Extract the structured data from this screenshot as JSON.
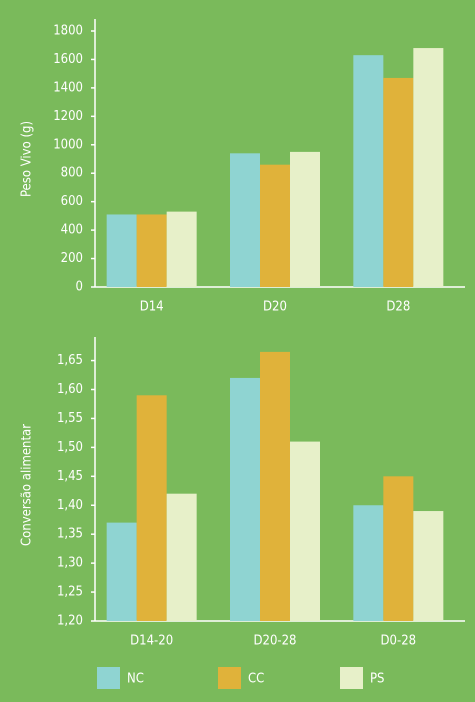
{
  "chart_data": [
    {
      "type": "bar",
      "ylabel": "Peso Vivo (g)",
      "categories": [
        "D14",
        "D20",
        "D28"
      ],
      "series": [
        {
          "name": "NC",
          "color": "#8fd4d2",
          "values": [
            510,
            940,
            1630
          ]
        },
        {
          "name": "CC",
          "color": "#e0b23a",
          "values": [
            510,
            860,
            1470
          ]
        },
        {
          "name": "PS",
          "color": "#e7f0c9",
          "values": [
            530,
            950,
            1680
          ]
        }
      ],
      "ylim": [
        0,
        1800
      ],
      "yticks": [
        0,
        200,
        400,
        600,
        800,
        1000,
        1200,
        1400,
        1600,
        1800
      ]
    },
    {
      "type": "bar",
      "ylabel": "Conversão alimentar",
      "categories": [
        "D14-20",
        "D20-28",
        "D0-28"
      ],
      "series": [
        {
          "name": "NC",
          "color": "#8fd4d2",
          "values": [
            1.37,
            1.62,
            1.4
          ]
        },
        {
          "name": "CC",
          "color": "#e0b23a",
          "values": [
            1.59,
            1.665,
            1.45
          ]
        },
        {
          "name": "PS",
          "color": "#e7f0c9",
          "values": [
            1.42,
            1.51,
            1.39
          ]
        }
      ],
      "ylim": [
        1.2,
        1.67
      ],
      "yticks": [
        {
          "value": 1.2,
          "label": "1,20"
        },
        {
          "value": 1.25,
          "label": "1,25"
        },
        {
          "value": 1.3,
          "label": "1,30"
        },
        {
          "value": 1.35,
          "label": "1,35"
        },
        {
          "value": 1.4,
          "label": "1,40"
        },
        {
          "value": 1.45,
          "label": "1,45"
        },
        {
          "value": 1.5,
          "label": "1,50"
        },
        {
          "value": 1.55,
          "label": "1,55"
        },
        {
          "value": 1.6,
          "label": "1,60"
        },
        {
          "value": 1.65,
          "label": "1,65"
        }
      ]
    }
  ]
}
